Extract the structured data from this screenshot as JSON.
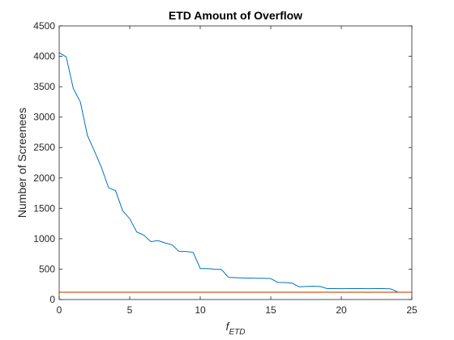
{
  "chart_data": {
    "type": "line",
    "title": "ETD Amount of Overflow",
    "xlabel": {
      "base": "f",
      "subscript": "ETD"
    },
    "ylabel": "Number of Screenees",
    "xlim": [
      0,
      25
    ],
    "ylim": [
      0,
      4500
    ],
    "xticks": [
      0,
      5,
      10,
      15,
      20,
      25
    ],
    "yticks": [
      0,
      500,
      1000,
      1500,
      2000,
      2500,
      3000,
      3500,
      4000,
      4500
    ],
    "grid": false,
    "series": [
      {
        "color": "#0072bd",
        "x": [
          0,
          0.5,
          1,
          1.5,
          2,
          2.5,
          3,
          3.5,
          4,
          4.5,
          5,
          5.5,
          6,
          6.5,
          7,
          7.5,
          8,
          8.5,
          9,
          9.5,
          10,
          10.5,
          11,
          11.5,
          12,
          12.5,
          13,
          13.5,
          14,
          14.5,
          15,
          15.5,
          16,
          16.5,
          17,
          17.5,
          18,
          18.5,
          19,
          19.5,
          20,
          20.5,
          21,
          21.5,
          22,
          22.5,
          23,
          23.5,
          24
        ],
        "y": [
          4060,
          3990,
          3470,
          3250,
          2700,
          2440,
          2170,
          1840,
          1790,
          1460,
          1330,
          1110,
          1060,
          950,
          970,
          930,
          900,
          790,
          790,
          775,
          510,
          510,
          500,
          495,
          365,
          360,
          355,
          352,
          350,
          350,
          345,
          280,
          280,
          270,
          210,
          215,
          218,
          215,
          180,
          180,
          178,
          180,
          180,
          180,
          178,
          180,
          180,
          175,
          125
        ]
      },
      {
        "color": "#d95319",
        "x": [
          0,
          25
        ],
        "y": [
          120,
          120
        ]
      }
    ]
  }
}
